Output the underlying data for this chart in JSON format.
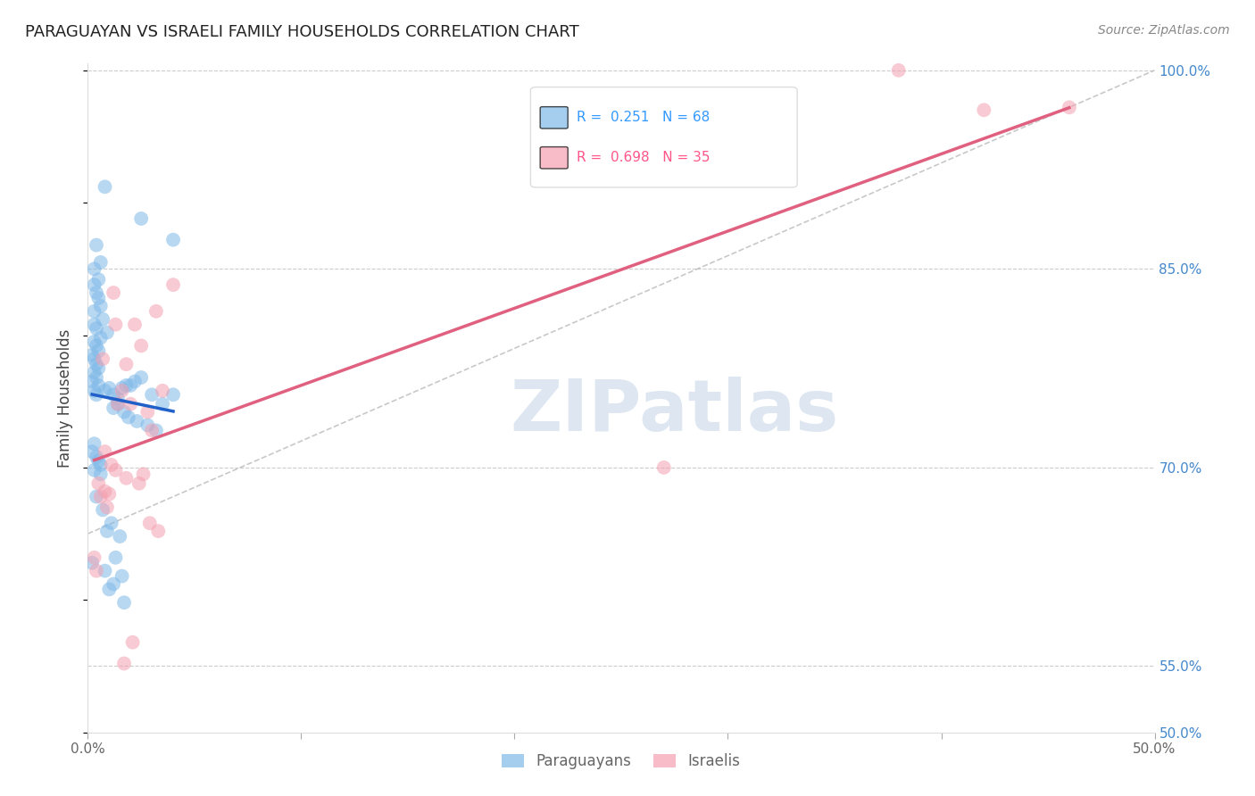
{
  "title": "PARAGUAYAN VS ISRAELI FAMILY HOUSEHOLDS CORRELATION CHART",
  "source": "Source: ZipAtlas.com",
  "ylabel": "Family Households",
  "xlim": [
    0.0,
    0.5
  ],
  "ylim": [
    0.5,
    1.005
  ],
  "blue_color": "#7eb8e8",
  "pink_color": "#f4a0b0",
  "blue_line_color": "#2060c8",
  "pink_line_color": "#e06080",
  "blue_R": 0.251,
  "blue_N": 68,
  "pink_R": 0.698,
  "pink_N": 35,
  "legend_label_blue": "Paraguayans",
  "legend_label_pink": "Israelis",
  "watermark_text": "ZIPatlas",
  "watermark_color": "#c8d8e8",
  "axis_label_color": "#4488cc",
  "grid_color": "#cccccc",
  "title_color": "#222222",
  "source_color": "#888888",
  "blue_x": [
    0.008,
    0.025,
    0.04,
    0.004,
    0.006,
    0.003,
    0.005,
    0.003,
    0.004,
    0.005,
    0.006,
    0.003,
    0.007,
    0.003,
    0.004,
    0.009,
    0.006,
    0.003,
    0.004,
    0.005,
    0.002,
    0.003,
    0.004,
    0.005,
    0.003,
    0.004,
    0.002,
    0.005,
    0.003,
    0.004,
    0.01,
    0.008,
    0.012,
    0.014,
    0.02,
    0.016,
    0.018,
    0.022,
    0.025,
    0.03,
    0.035,
    0.04,
    0.014,
    0.012,
    0.017,
    0.019,
    0.023,
    0.028,
    0.032,
    0.003,
    0.002,
    0.004,
    0.005,
    0.006,
    0.003,
    0.006,
    0.004,
    0.007,
    0.011,
    0.009,
    0.015,
    0.002,
    0.013,
    0.008,
    0.016,
    0.012,
    0.01,
    0.017
  ],
  "blue_y": [
    0.912,
    0.888,
    0.872,
    0.868,
    0.855,
    0.85,
    0.842,
    0.838,
    0.832,
    0.828,
    0.822,
    0.818,
    0.812,
    0.808,
    0.805,
    0.802,
    0.798,
    0.795,
    0.792,
    0.788,
    0.785,
    0.782,
    0.778,
    0.775,
    0.772,
    0.768,
    0.765,
    0.762,
    0.758,
    0.755,
    0.76,
    0.758,
    0.755,
    0.752,
    0.762,
    0.76,
    0.762,
    0.765,
    0.768,
    0.755,
    0.748,
    0.755,
    0.748,
    0.745,
    0.742,
    0.738,
    0.735,
    0.732,
    0.728,
    0.718,
    0.712,
    0.708,
    0.705,
    0.702,
    0.698,
    0.695,
    0.678,
    0.668,
    0.658,
    0.652,
    0.648,
    0.628,
    0.632,
    0.622,
    0.618,
    0.612,
    0.608,
    0.598
  ],
  "pink_x": [
    0.38,
    0.42,
    0.46,
    0.005,
    0.008,
    0.01,
    0.014,
    0.018,
    0.02,
    0.025,
    0.028,
    0.03,
    0.035,
    0.04,
    0.012,
    0.022,
    0.007,
    0.032,
    0.016,
    0.008,
    0.011,
    0.013,
    0.018,
    0.024,
    0.006,
    0.009,
    0.013,
    0.026,
    0.029,
    0.033,
    0.003,
    0.004,
    0.017,
    0.021,
    0.27
  ],
  "pink_y": [
    1.0,
    0.97,
    0.972,
    0.688,
    0.682,
    0.68,
    0.748,
    0.778,
    0.748,
    0.792,
    0.742,
    0.728,
    0.758,
    0.838,
    0.832,
    0.808,
    0.782,
    0.818,
    0.758,
    0.712,
    0.702,
    0.698,
    0.692,
    0.688,
    0.678,
    0.67,
    0.808,
    0.695,
    0.658,
    0.652,
    0.632,
    0.622,
    0.552,
    0.568,
    0.7
  ]
}
